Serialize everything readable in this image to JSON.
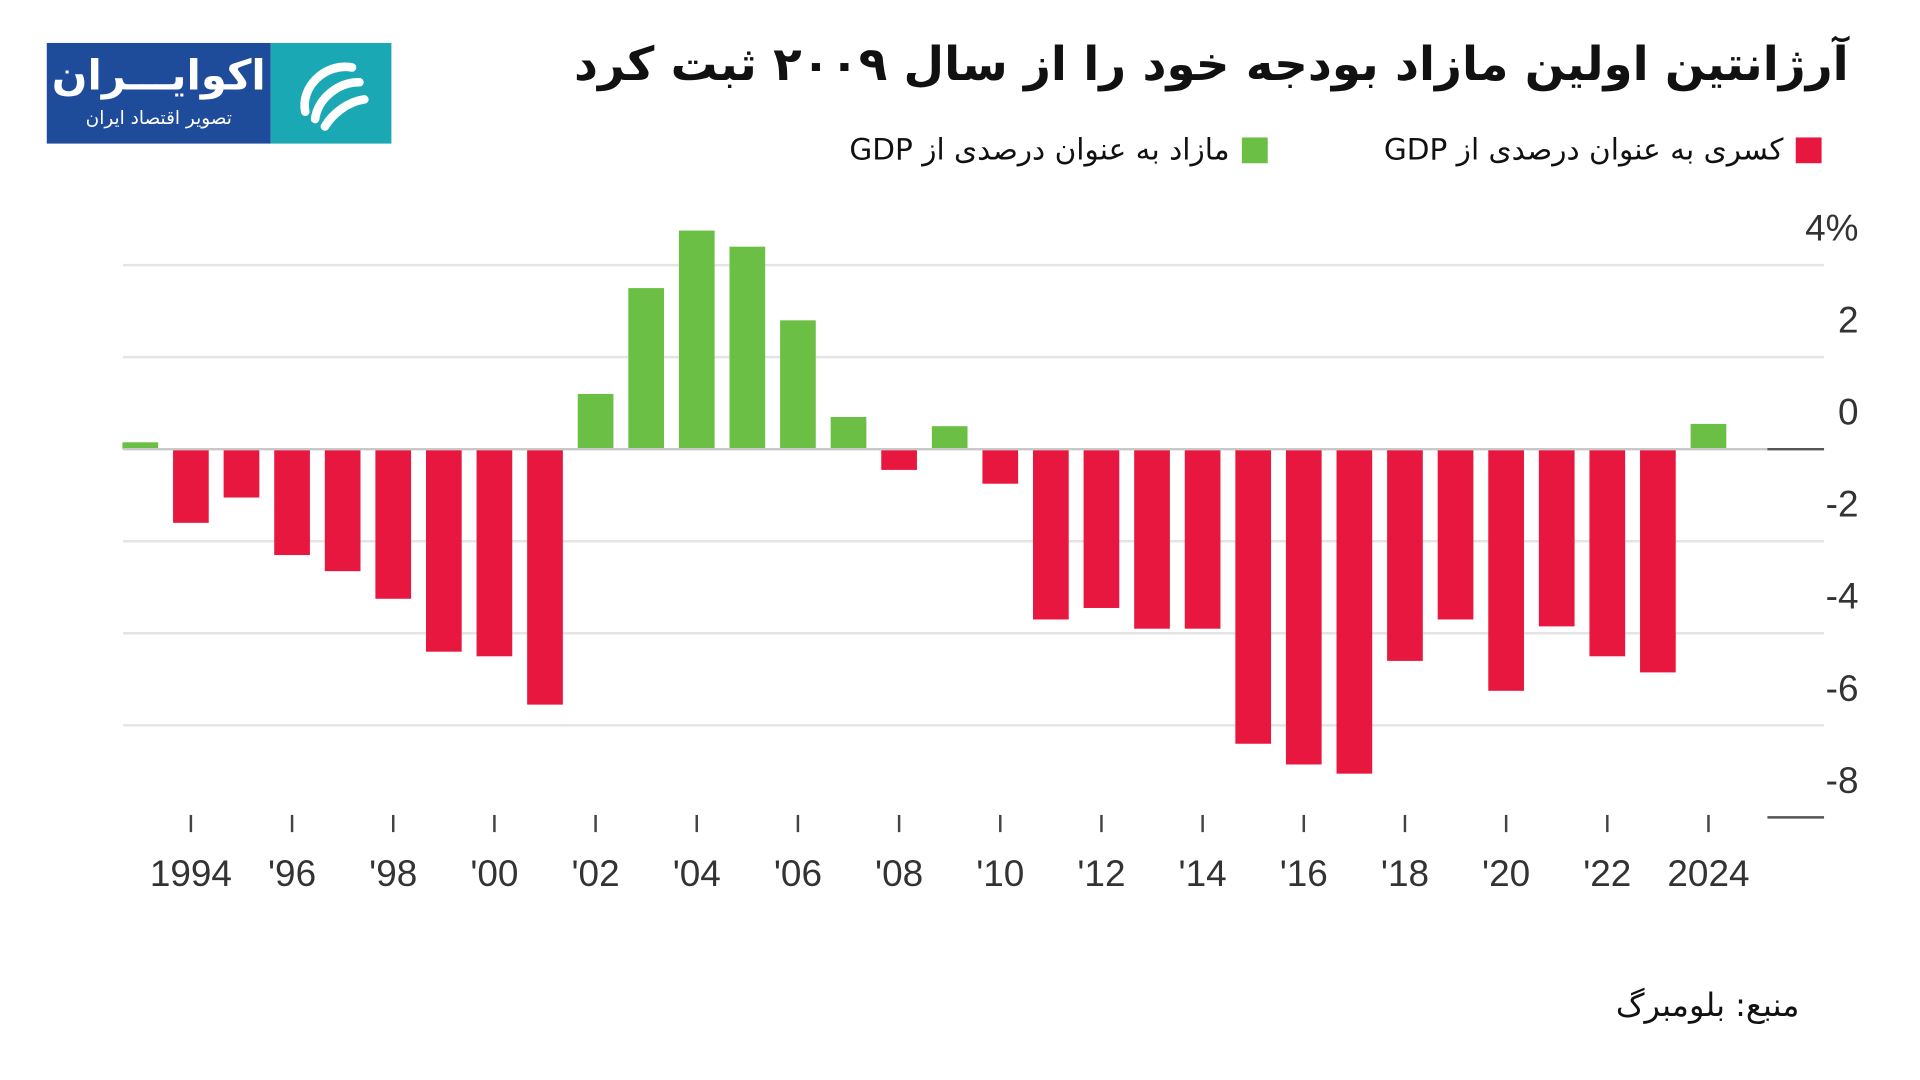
{
  "logo": {
    "brand": "اکوایـــران",
    "tagline": "تصویر اقتصاد ایران"
  },
  "title": "آرژانتین اولین مازاد بودجه خود را از سال ۲۰۰۹ ثبت کرد",
  "source": "منبع: بلومبرگ",
  "colors": {
    "deficit": "#e8173f",
    "surplus": "#6cbf45"
  },
  "chart_data": {
    "type": "bar",
    "title": "آرژانتین اولین مازاد بودجه خود را از سال ۲۰۰۹ ثبت کرد",
    "xlabel": "",
    "ylabel": "",
    "legend": [
      {
        "name": "کسری به عنوان درصدی از GDP",
        "color": "#e8173f"
      },
      {
        "name": "مازاد به عنوان درصدی از GDP",
        "color": "#6cbf45"
      }
    ],
    "legend_position": "top-right",
    "years": [
      1993,
      1994,
      1995,
      1996,
      1997,
      1998,
      1999,
      2000,
      2001,
      2002,
      2003,
      2004,
      2005,
      2006,
      2007,
      2008,
      2009,
      2010,
      2011,
      2012,
      2013,
      2014,
      2015,
      2016,
      2017,
      2018,
      2019,
      2020,
      2021,
      2022,
      2023,
      2024
    ],
    "values": [
      0.15,
      -1.6,
      -1.05,
      -2.3,
      -2.65,
      -3.25,
      -4.4,
      -4.5,
      -5.55,
      1.2,
      3.5,
      4.75,
      4.4,
      2.8,
      0.7,
      -0.45,
      0.5,
      -0.75,
      -3.7,
      -3.45,
      -3.9,
      -3.9,
      -6.4,
      -6.85,
      -7.05,
      -4.6,
      -3.7,
      -5.25,
      -3.85,
      -4.5,
      -4.85,
      0.55
    ],
    "x_tick_labels": [
      "1994",
      "'96",
      "'98",
      "'00",
      "'02",
      "'04",
      "'06",
      "'08",
      "'10",
      "'12",
      "'14",
      "'16",
      "'18",
      "'20",
      "'22",
      "2024"
    ],
    "x_tick_years": [
      1994,
      1996,
      1998,
      2000,
      2002,
      2004,
      2006,
      2008,
      2010,
      2012,
      2014,
      2016,
      2018,
      2020,
      2022,
      2024
    ],
    "y_ticks": [
      4,
      2,
      0,
      -2,
      -4,
      -6,
      -8
    ],
    "y_tick_labels": [
      "4%",
      "2",
      "0",
      "-2",
      "-4",
      "-6",
      "-8"
    ],
    "ylim": [
      -8,
      4
    ],
    "grid": true
  }
}
